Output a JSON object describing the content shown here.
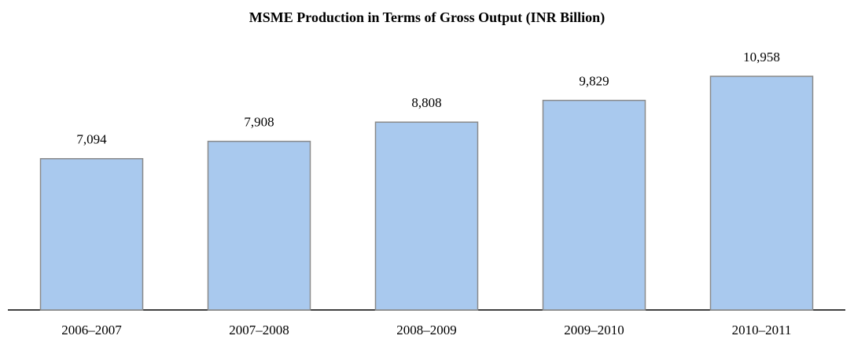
{
  "chart_data": {
    "type": "bar",
    "title": "MSME Production in Terms of Gross Output (INR Billion)",
    "categories": [
      "2006–2007",
      "2007–2008",
      "2008–2009",
      "2009–2010",
      "2010–2011"
    ],
    "values": [
      7094,
      7908,
      8808,
      9829,
      10958
    ],
    "value_labels": [
      "7,094",
      "7,908",
      "8,808",
      "9,829",
      "10,958"
    ],
    "color": "#a9c9ee"
  }
}
